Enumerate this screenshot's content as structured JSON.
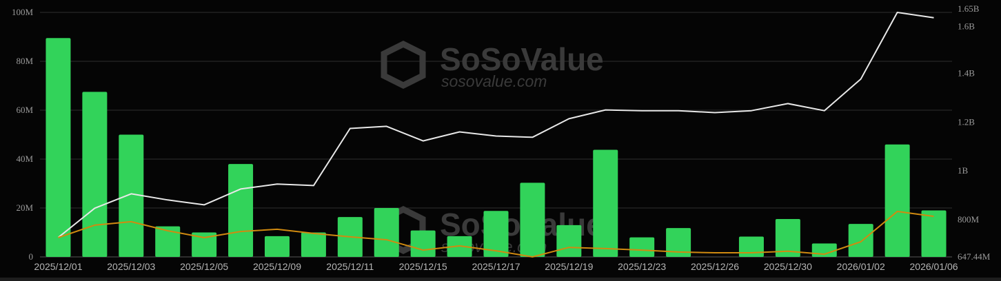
{
  "chart_data": {
    "type": "bar",
    "title": "",
    "categories": [
      "2025/12/01",
      "2025/12/02",
      "2025/12/03",
      "2025/12/04",
      "2025/12/05",
      "2025/12/08",
      "2025/12/09",
      "2025/12/10",
      "2025/12/11",
      "2025/12/12",
      "2025/12/15",
      "2025/12/16",
      "2025/12/17",
      "2025/12/18",
      "2025/12/19",
      "2025/12/22",
      "2025/12/23",
      "2025/12/24",
      "2025/12/26",
      "2025/12/29",
      "2025/12/30",
      "2025/12/31",
      "2026/01/02",
      "2026/01/05",
      "2026/01/06"
    ],
    "x_tick_labels": [
      "2025/12/01",
      "2025/12/03",
      "2025/12/05",
      "2025/12/09",
      "2025/12/11",
      "2025/12/15",
      "2025/12/17",
      "2025/12/19",
      "2025/12/23",
      "2025/12/26",
      "2025/12/30",
      "2026/01/02",
      "2026/01/06"
    ],
    "left_axis": {
      "ylim": [
        0,
        100
      ],
      "unit": "M",
      "ticks": [
        "0",
        "20M",
        "40M",
        "60M",
        "80M",
        "100M"
      ],
      "tick_values": [
        0,
        20,
        40,
        60,
        80,
        100
      ]
    },
    "right_axis": {
      "ylim": [
        647.44,
        1650
      ],
      "unit": "M",
      "ticks": [
        "647.44M",
        "800M",
        "1B",
        "1.2B",
        "1.4B",
        "1.6B",
        "1.65B"
      ],
      "tick_values": [
        647.44,
        800,
        1000,
        1200,
        1400,
        1600,
        1650
      ]
    },
    "grid": true,
    "series": [
      {
        "type": "bar",
        "axis": "left",
        "color": "#32d35a",
        "values": [
          89.5,
          67.5,
          50,
          12.5,
          10,
          38,
          8.5,
          10,
          16.3,
          20,
          10.8,
          8.5,
          18.8,
          30.3,
          13,
          43.8,
          8,
          11.8,
          0,
          8.3,
          15.5,
          5.5,
          13.5,
          46,
          19
        ]
      },
      {
        "type": "line",
        "axis": "right",
        "color": "#e8e8e8",
        "values": [
          727,
          847,
          906,
          881,
          861,
          926,
          946,
          940,
          1174,
          1183,
          1123,
          1160,
          1143,
          1138,
          1214,
          1250,
          1247,
          1247,
          1239,
          1247,
          1276,
          1247,
          1377,
          1650,
          1628
        ]
      },
      {
        "type": "line",
        "axis": "left",
        "color": "#d08a10",
        "values": [
          7.9,
          13,
          14.4,
          10.7,
          7.9,
          10.4,
          11.3,
          9.6,
          8.2,
          7,
          2.8,
          4.5,
          2.5,
          0,
          3.9,
          3.4,
          2.8,
          2,
          1.7,
          1.7,
          2.3,
          1.1,
          6.2,
          18.6,
          16.6
        ]
      }
    ]
  },
  "watermark": {
    "brand": "SoSoValue",
    "url": "sosovalue.com"
  }
}
